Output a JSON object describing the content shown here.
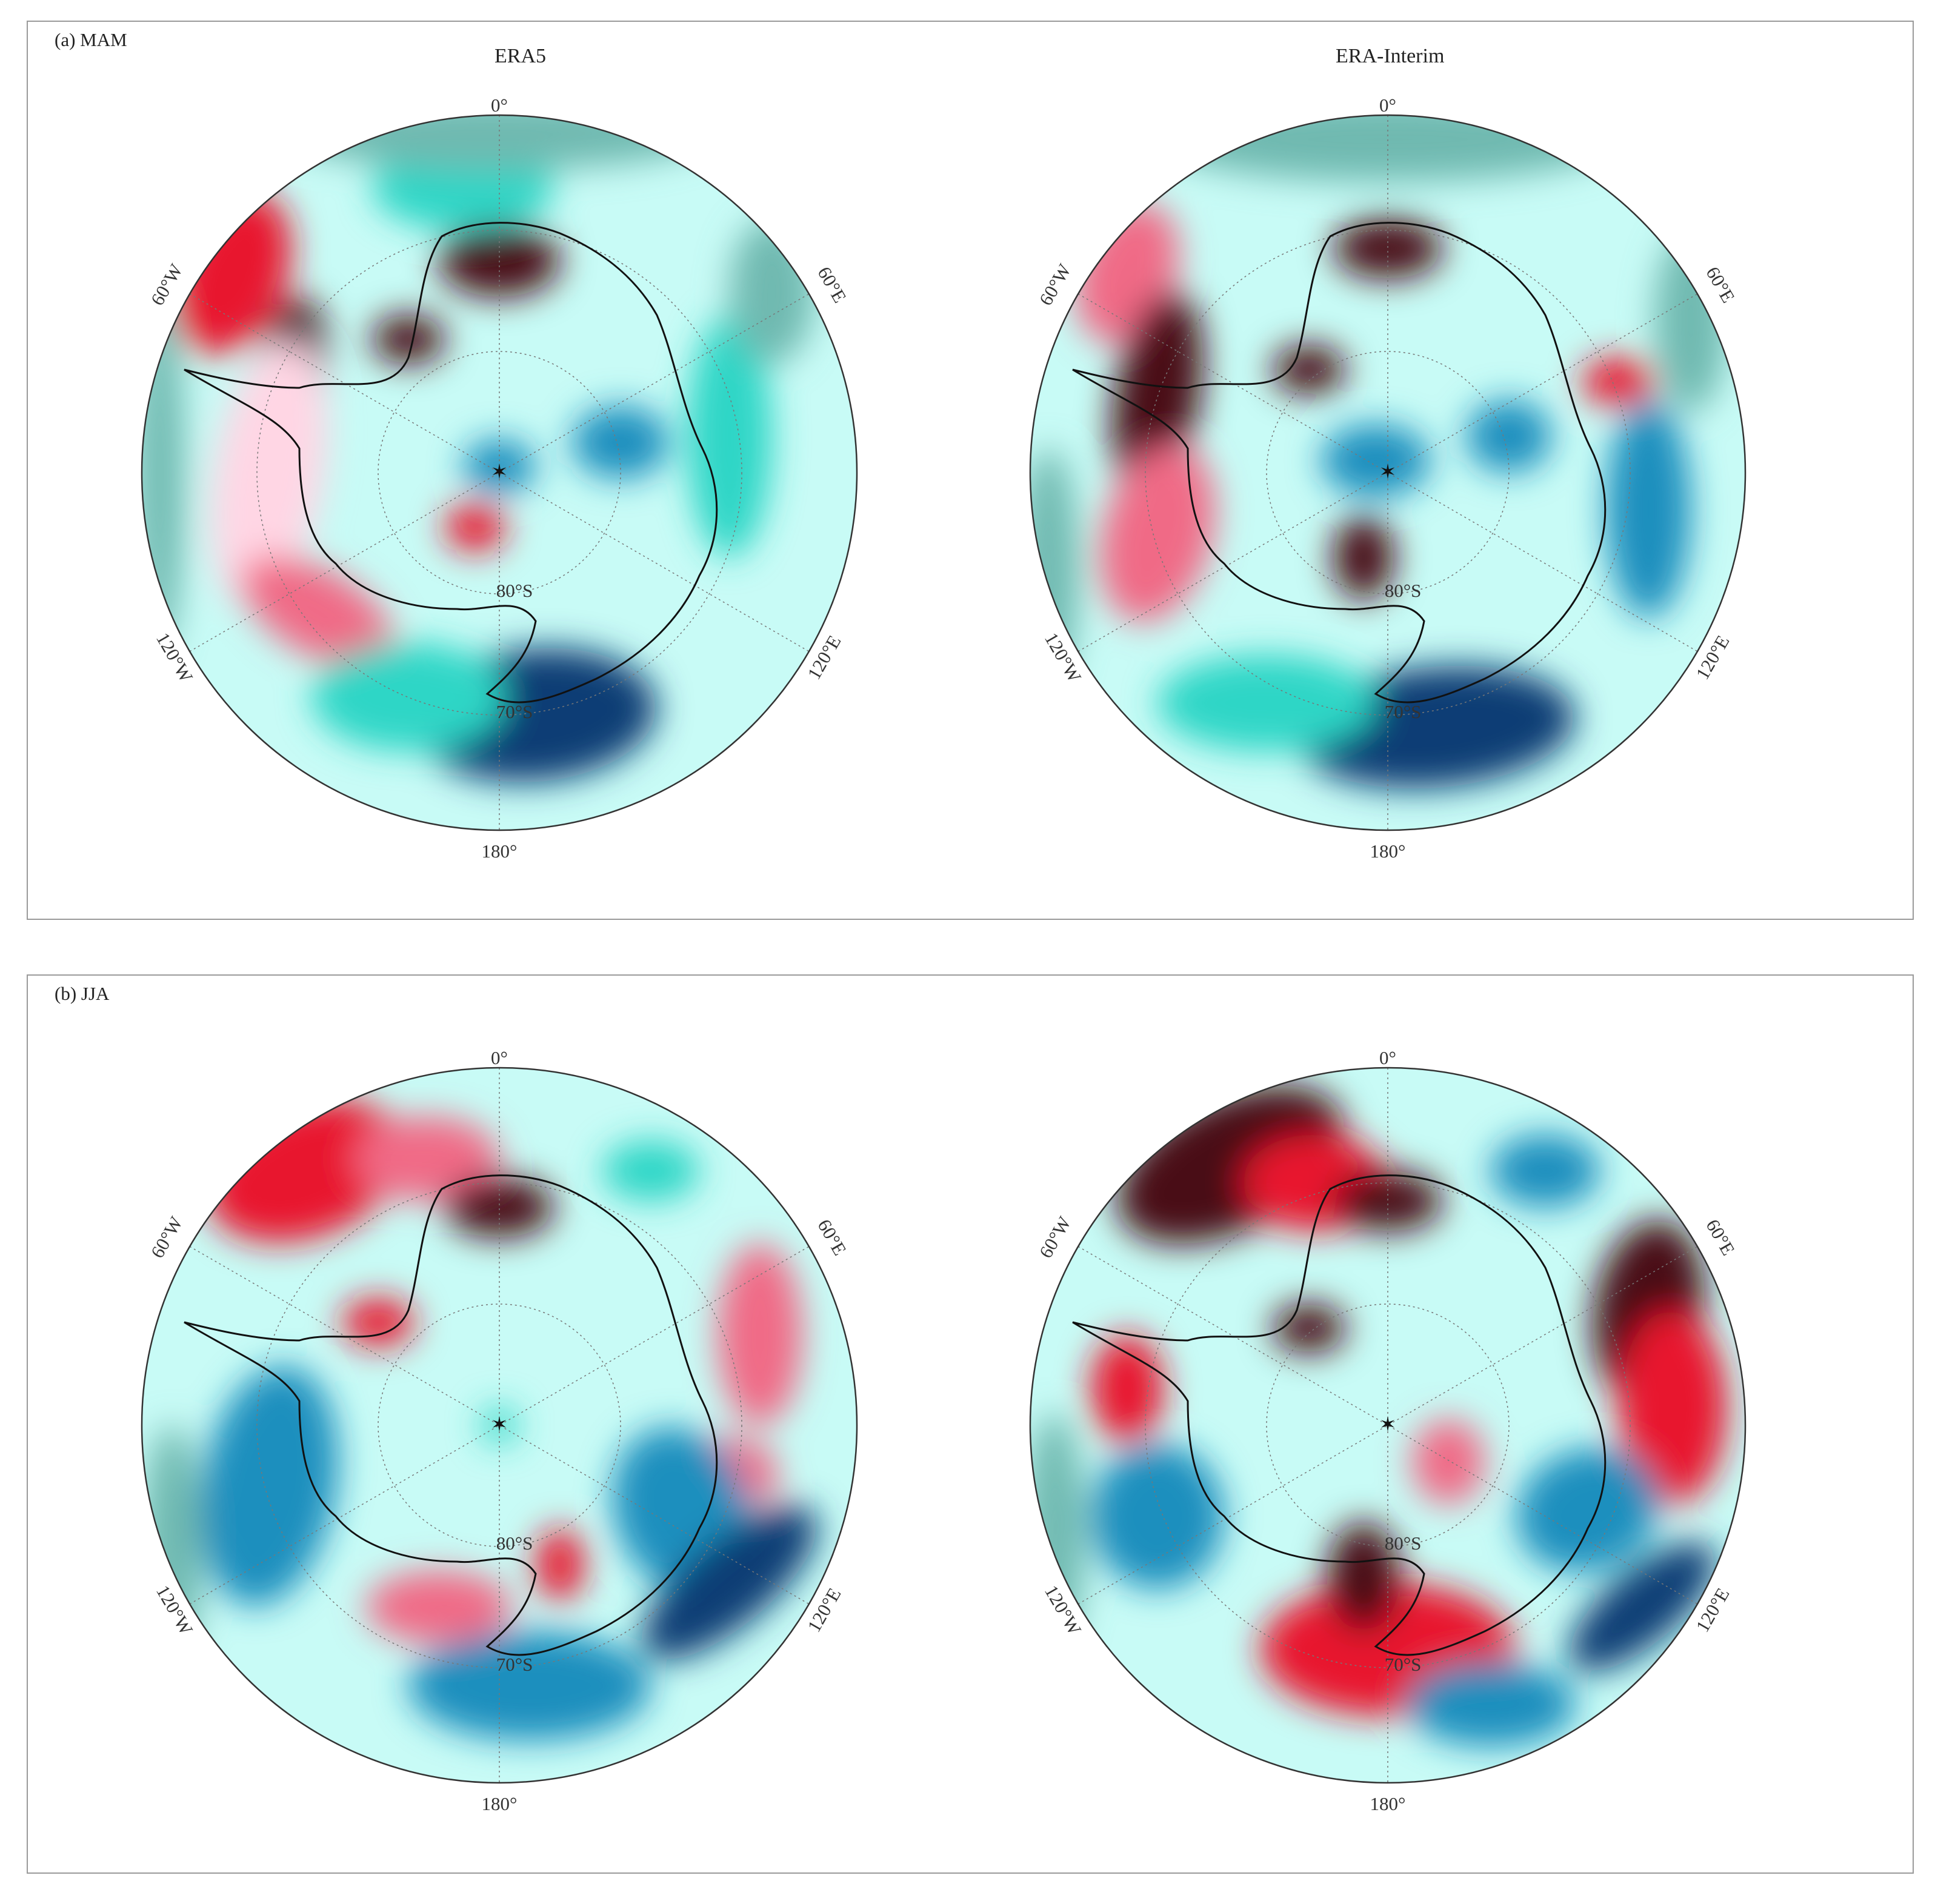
{
  "panels": [
    {
      "label": "(a) MAM",
      "columns": [
        "ERA5",
        "ERA-Interim"
      ]
    },
    {
      "label": "(b) JJA",
      "columns": [
        "",
        ""
      ]
    }
  ],
  "map_labels": {
    "lon_0": "0°",
    "lon_60e": "60°E",
    "lon_120e": "120°E",
    "lon_180": "180°",
    "lon_120w": "120°W",
    "lon_60w": "60°W",
    "lat_80s": "80°S",
    "lat_70s": "70°S"
  },
  "colors": {
    "negative_strong": "#0b3e75",
    "negative": "#1f8fbe",
    "negative_weak": "#2fd6c6",
    "negative_faint": "#c8fbf6",
    "neutral": "#ffffff",
    "positive_faint": "#ffd6e4",
    "positive": "#f06b86",
    "positive_strong": "#e8162e",
    "positive_max": "#4a0b15",
    "hatched": "#6fb9b0"
  }
}
